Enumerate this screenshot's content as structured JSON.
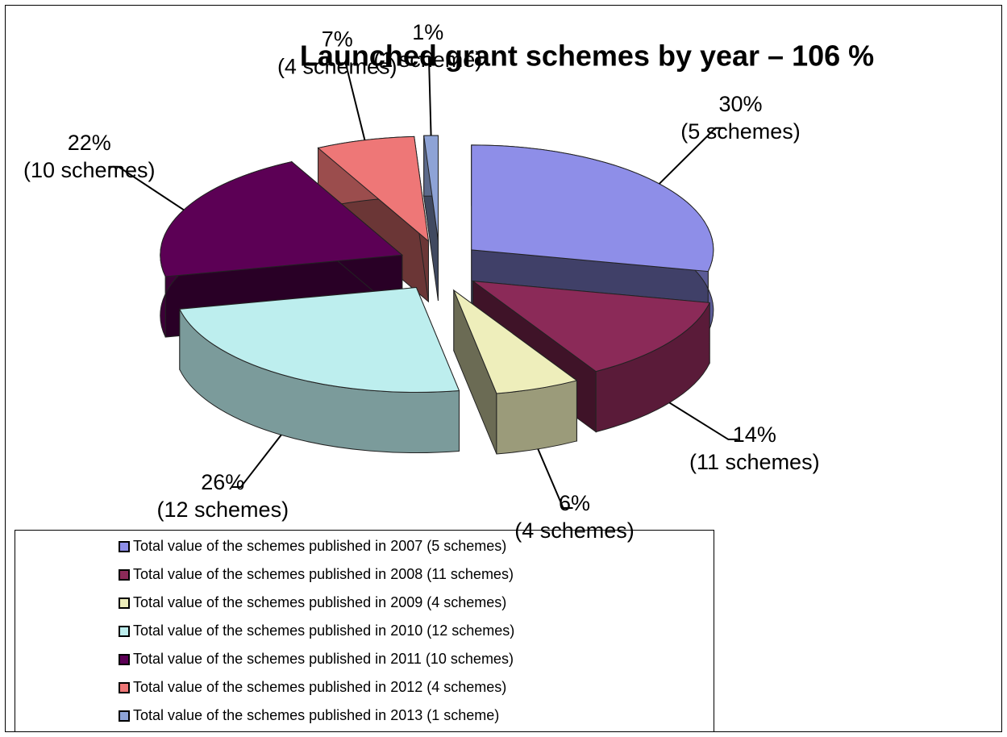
{
  "chart_data": {
    "type": "pie",
    "title": "Launched grant schemes by year – 106 %",
    "categories": [
      "Total value of the schemes published in 2007 (5 schemes)",
      "Total value of the schemes published in 2008 (11 schemes)",
      "Total value of the schemes published in 2009 (4 schemes)",
      "Total value of the schemes published in 2010 (12 schemes)",
      "Total value of the schemes published in 2011 (10 schemes)",
      "Total value of the schemes published in 2012 (4 schemes)",
      "Total value of the schemes published in 2013 (1 scheme)"
    ],
    "values": [
      30,
      14,
      6,
      26,
      22,
      7,
      1
    ],
    "value_labels": [
      "30%",
      "14%",
      "6%",
      "26%",
      "22%",
      "7%",
      "1%"
    ],
    "scheme_labels": [
      "(5 schemes)",
      "(11 schemes)",
      "(4 schemes)",
      "(12 schemes)",
      "(10 schemes)",
      "(4 schemes)",
      "(1 scheme)"
    ],
    "colors": [
      "#8e8ee8",
      "#8b2a58",
      "#eeeebb",
      "#bdeeee",
      "#5c0055",
      "#ee7777",
      "#8ea3d6"
    ]
  }
}
